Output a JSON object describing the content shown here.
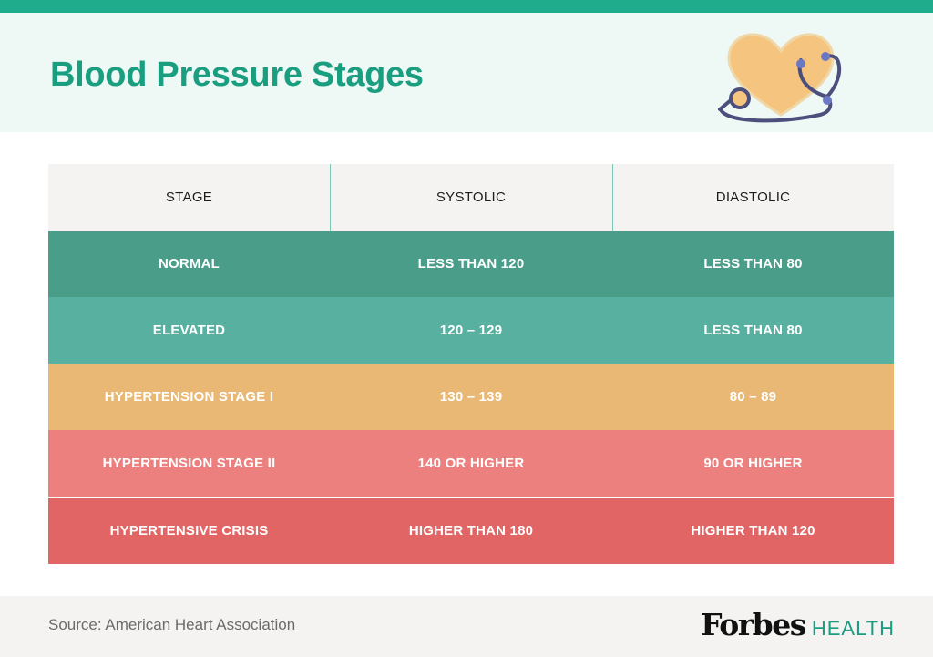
{
  "header": {
    "title": "Blood Pressure Stages",
    "accent_color": "#1eac8c",
    "illustration": "heart-with-stethoscope-icon"
  },
  "table": {
    "columns": [
      "STAGE",
      "SYSTOLIC",
      "DIASTOLIC"
    ],
    "rows": [
      {
        "stage": "NORMAL",
        "systolic": "LESS THAN 120",
        "diastolic": "LESS THAN 80",
        "color": "#4a9e89"
      },
      {
        "stage": "ELEVATED",
        "systolic": "120 – 129",
        "diastolic": "LESS THAN 80",
        "color": "#58b1a0"
      },
      {
        "stage": "HYPERTENSION STAGE I",
        "systolic": "130 – 139",
        "diastolic": "80 – 89",
        "color": "#e9b874"
      },
      {
        "stage": "HYPERTENSION STAGE II",
        "systolic": "140 OR HIGHER",
        "diastolic": "90 OR HIGHER",
        "color": "#ec807f"
      },
      {
        "stage": "HYPERTENSIVE CRISIS",
        "systolic": "HIGHER THAN 180",
        "diastolic": "HIGHER THAN 120",
        "color": "#e26565"
      }
    ]
  },
  "footer": {
    "source": "Source: American Heart Association",
    "brand_main": "Forbes",
    "brand_sub": "HEALTH"
  }
}
